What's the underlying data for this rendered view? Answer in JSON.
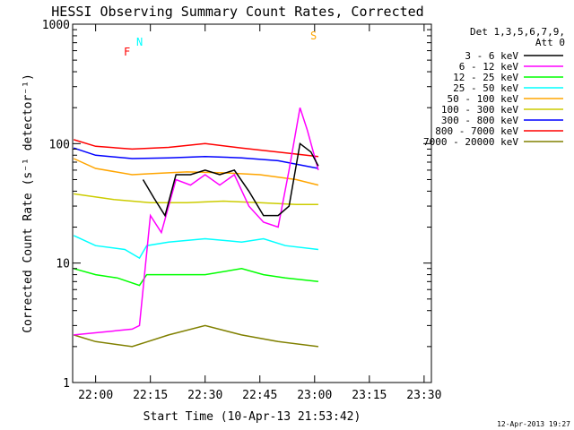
{
  "chart_data": {
    "type": "line",
    "title": "HESSI Observing Summary Count Rates, Corrected",
    "xlabel": "Start Time (10-Apr-13 21:53:42)",
    "ylabel": "Corrected Count Rate (s⁻¹ detector⁻¹)",
    "xlim": [
      "21:53:42",
      "23:32:00"
    ],
    "ylim": [
      1,
      1000
    ],
    "yscale": "log",
    "x_ticks": [
      "22:00",
      "22:15",
      "22:30",
      "22:45",
      "23:00",
      "23:15",
      "23:30"
    ],
    "y_ticks": [
      "1",
      "10",
      "100",
      "1000"
    ],
    "legend_title": [
      "Det 1,3,5,6,7,9,",
      "Att 0"
    ],
    "legend_position": "right",
    "series": [
      {
        "name": "3 - 6 keV",
        "color": "#000000",
        "x": [
          "22:00",
          "22:10",
          "22:13",
          "22:16",
          "22:19",
          "22:22",
          "22:26",
          "22:30",
          "22:34",
          "22:38",
          "22:42",
          "22:46",
          "22:50",
          "22:53",
          "22:56",
          "22:59",
          "23:01"
        ],
        "y": [
          null,
          null,
          50,
          35,
          25,
          55,
          55,
          60,
          55,
          60,
          40,
          25,
          25,
          30,
          100,
          85,
          65
        ]
      },
      {
        "name": "6 - 12 keV",
        "color": "#ff00ff",
        "x": [
          "21:54",
          "22:10",
          "22:12",
          "22:15",
          "22:18",
          "22:22",
          "22:26",
          "22:30",
          "22:34",
          "22:38",
          "22:42",
          "22:46",
          "22:50",
          "22:53",
          "22:56",
          "22:58",
          "23:01"
        ],
        "y": [
          2.5,
          2.8,
          3.0,
          25,
          18,
          50,
          45,
          55,
          45,
          55,
          30,
          22,
          20,
          60,
          200,
          130,
          60
        ]
      },
      {
        "name": "12 - 25 keV",
        "color": "#00ff00",
        "x": [
          "21:54",
          "22:00",
          "22:06",
          "22:12",
          "22:14",
          "22:20",
          "22:30",
          "22:40",
          "22:46",
          "22:52",
          "23:01"
        ],
        "y": [
          9,
          8,
          7.5,
          6.5,
          8,
          8,
          8,
          9,
          8,
          7.5,
          7
        ]
      },
      {
        "name": "25 - 50 keV",
        "color": "#00ffff",
        "x": [
          "21:54",
          "22:00",
          "22:08",
          "22:12",
          "22:14",
          "22:20",
          "22:30",
          "22:40",
          "22:46",
          "22:52",
          "23:01"
        ],
        "y": [
          17,
          14,
          13,
          11,
          14,
          15,
          16,
          15,
          16,
          14,
          13
        ]
      },
      {
        "name": "50 - 100 keV",
        "color": "#ffa500",
        "x": [
          "21:54",
          "22:00",
          "22:10",
          "22:15",
          "22:25",
          "22:35",
          "22:45",
          "22:55",
          "23:01"
        ],
        "y": [
          75,
          62,
          55,
          56,
          58,
          57,
          55,
          50,
          45
        ]
      },
      {
        "name": "100 - 300 keV",
        "color": "#cccc00",
        "x": [
          "21:54",
          "22:05",
          "22:15",
          "22:25",
          "22:35",
          "22:45",
          "22:55",
          "23:01"
        ],
        "y": [
          38,
          34,
          32,
          32,
          33,
          32,
          31,
          31
        ]
      },
      {
        "name": "300 - 800 keV",
        "color": "#0000ff",
        "x": [
          "21:54",
          "22:00",
          "22:10",
          "22:20",
          "22:30",
          "22:40",
          "22:50",
          "23:01"
        ],
        "y": [
          92,
          80,
          75,
          76,
          78,
          76,
          72,
          62
        ]
      },
      {
        "name": "800 - 7000 keV",
        "color": "#ff0000",
        "x": [
          "21:54",
          "22:00",
          "22:10",
          "22:20",
          "22:30",
          "22:40",
          "22:50",
          "23:01"
        ],
        "y": [
          108,
          95,
          90,
          93,
          100,
          92,
          85,
          78
        ]
      },
      {
        "name": "7000 - 20000 keV",
        "color": "#808000",
        "x": [
          "21:54",
          "22:00",
          "22:10",
          "22:20",
          "22:30",
          "22:40",
          "22:50",
          "23:01"
        ],
        "y": [
          2.5,
          2.2,
          2.0,
          2.5,
          3.0,
          2.5,
          2.2,
          2.0
        ]
      }
    ],
    "annotations": [
      {
        "label": "N",
        "color": "#00ffff"
      },
      {
        "label": "F",
        "color": "#ff0000"
      },
      {
        "label": "S",
        "color": "#ffa500"
      }
    ],
    "footer": "12-Apr-2013 19:27"
  }
}
